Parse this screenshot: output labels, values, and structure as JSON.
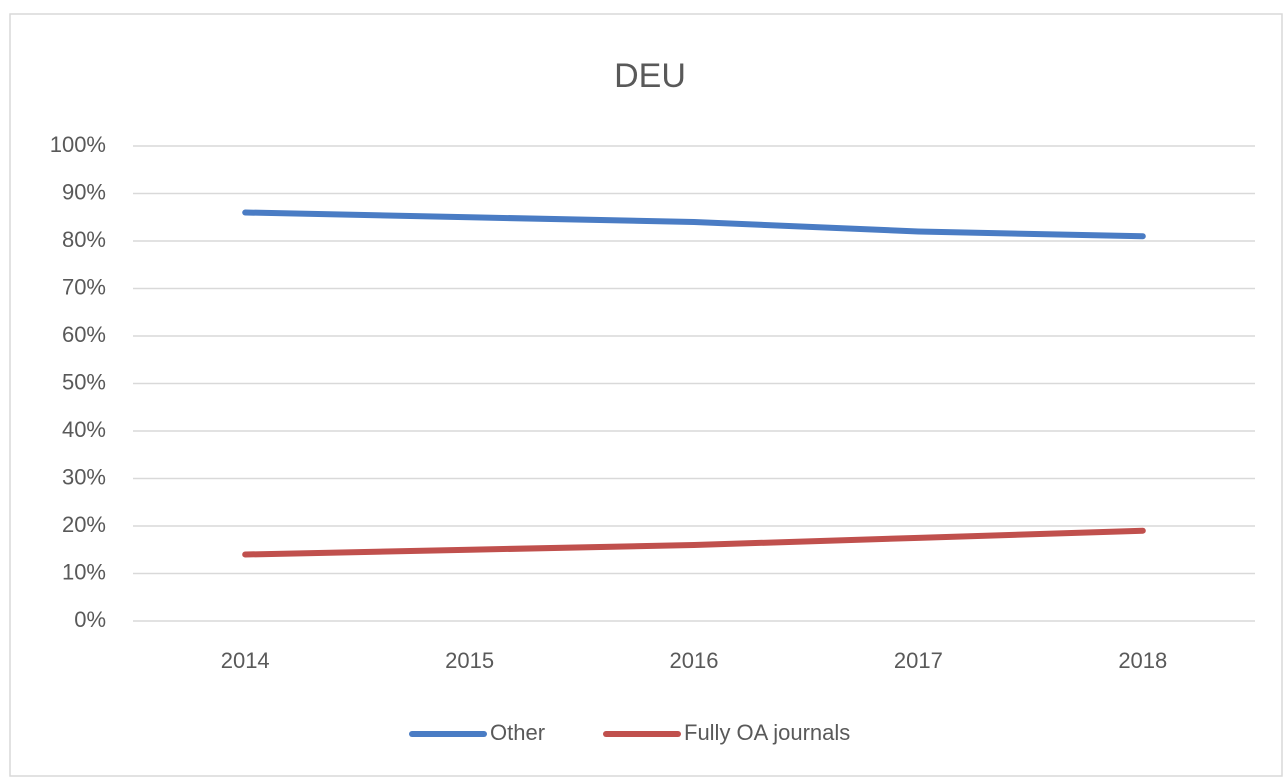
{
  "chart_data": {
    "type": "line",
    "title": "DEU",
    "categories": [
      "2014",
      "2015",
      "2016",
      "2017",
      "2018"
    ],
    "series": [
      {
        "name": "Other",
        "color": "#4a7cc4",
        "values": [
          86,
          85,
          84,
          82,
          81
        ]
      },
      {
        "name": "Fully OA journals",
        "color": "#c0504d",
        "values": [
          14,
          15,
          16,
          17.5,
          19
        ]
      }
    ],
    "ylim": [
      0,
      100
    ],
    "yticks": [
      {
        "value": 0,
        "label": "0%"
      },
      {
        "value": 10,
        "label": "10%"
      },
      {
        "value": 20,
        "label": "20%"
      },
      {
        "value": 30,
        "label": "30%"
      },
      {
        "value": 40,
        "label": "40%"
      },
      {
        "value": 50,
        "label": "50%"
      },
      {
        "value": 60,
        "label": "60%"
      },
      {
        "value": 70,
        "label": "70%"
      },
      {
        "value": 80,
        "label": "80%"
      },
      {
        "value": 90,
        "label": "90%"
      },
      {
        "value": 100,
        "label": "100%"
      }
    ],
    "grid": true,
    "legend": "bottom"
  }
}
